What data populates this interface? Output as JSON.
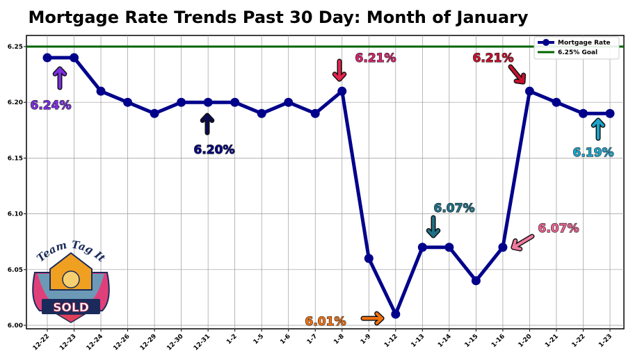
{
  "chart_data": {
    "type": "line",
    "title": "Mortgage Rate Trends Past 30 Day: Month of January",
    "xlabel": "",
    "ylabel": "",
    "categories": [
      "12-22",
      "12-23",
      "12-24",
      "12-26",
      "12-29",
      "12-30",
      "12-31",
      "1-2",
      "1-5",
      "1-6",
      "1-7",
      "1-8",
      "1-9",
      "1-12",
      "1-13",
      "1-14",
      "1-15",
      "1-16",
      "1-20",
      "1-21",
      "1-22",
      "1-23"
    ],
    "series": [
      {
        "name": "Mortgage Rate",
        "color": "#00008b",
        "values": [
          6.24,
          6.24,
          6.21,
          6.2,
          6.19,
          6.2,
          6.2,
          6.2,
          6.19,
          6.2,
          6.19,
          6.21,
          6.06,
          6.01,
          6.07,
          6.07,
          6.04,
          6.07,
          6.21,
          6.2,
          6.19,
          6.19
        ]
      }
    ],
    "reference_lines": [
      {
        "name": "6.25% Goal",
        "value": 6.25,
        "color": "#006400"
      }
    ],
    "ylim": [
      6.0,
      6.25
    ],
    "yticks": [
      "6.00",
      "6.05",
      "6.10",
      "6.15",
      "6.20",
      "6.25"
    ],
    "grid": true,
    "legend_position": "top-right",
    "annotations": [
      {
        "text": "6.24%",
        "color": "#7b2fe0",
        "arrow_color": "#7b2fe0"
      },
      {
        "text": "6.20%",
        "color": "#0a0a80",
        "arrow_color": "#0a0a50"
      },
      {
        "text": "6.21%",
        "color": "#d6246e",
        "arrow_color": "#e8244e"
      },
      {
        "text": "6.21%",
        "color": "#c8102e",
        "arrow_color": "#c8102e"
      },
      {
        "text": "6.07%",
        "color": "#1f7085",
        "arrow_color": "#1f7085"
      },
      {
        "text": "6.07%",
        "color": "#e8608f",
        "arrow_color": "#f07aa0"
      },
      {
        "text": "6.01%",
        "color": "#f07010",
        "arrow_color": "#f07010"
      },
      {
        "text": "6.19%",
        "color": "#1aa5cc",
        "arrow_color": "#1aa5cc"
      }
    ]
  },
  "logo": {
    "top_text": "Team Tag It",
    "badge_text": "SOLD"
  }
}
